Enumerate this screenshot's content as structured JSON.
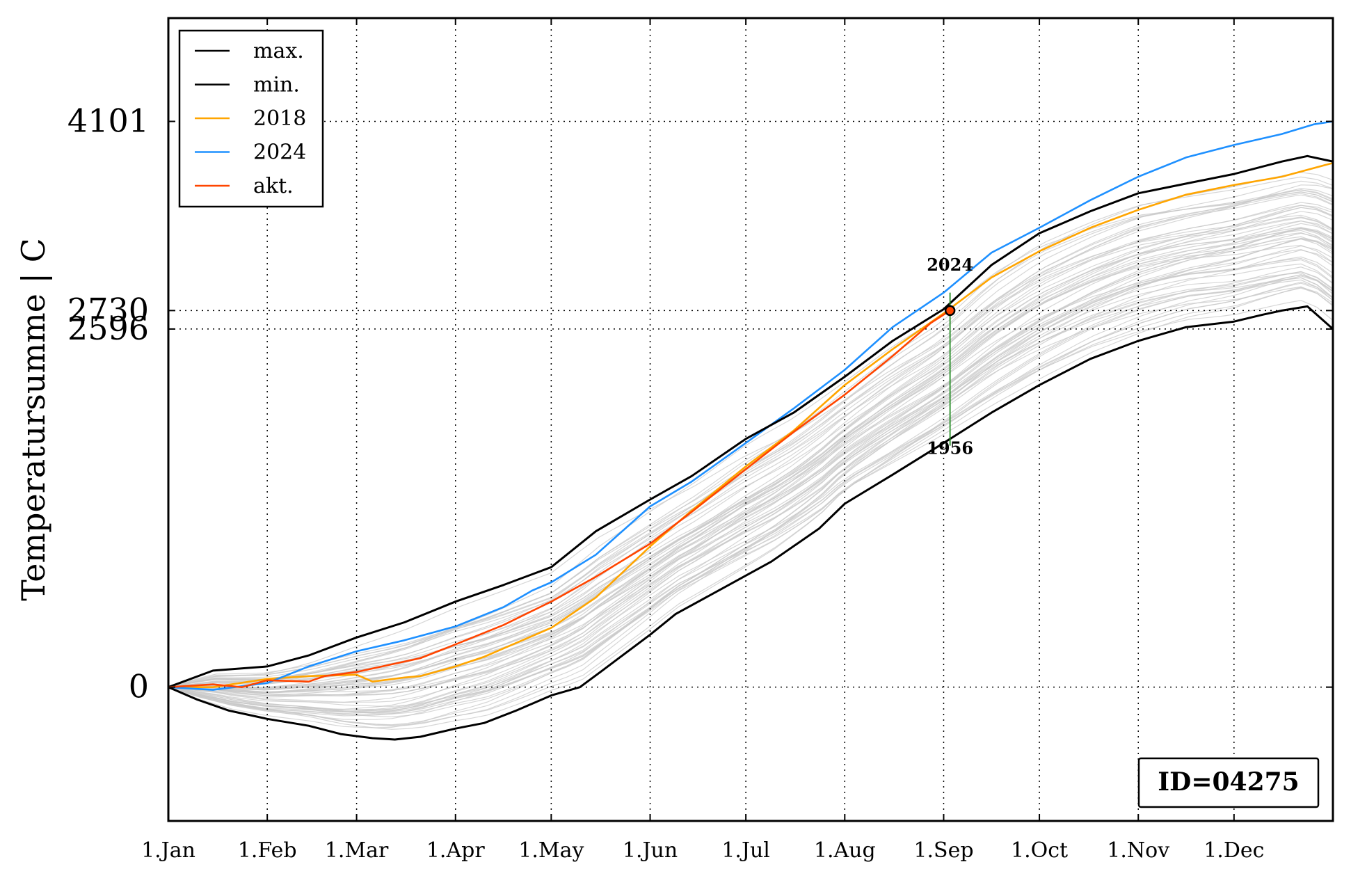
{
  "chart_data": {
    "type": "line",
    "title": "",
    "xlabel": "",
    "ylabel": "Temperatursumme | C",
    "x_unit": "day of year",
    "xlim": [
      1,
      366
    ],
    "ylim": [
      -970,
      4850
    ],
    "x_ticks": [
      {
        "label": "1.Jan",
        "day": 1
      },
      {
        "label": "1.Feb",
        "day": 32
      },
      {
        "label": "1.Mar",
        "day": 60
      },
      {
        "label": "1.Apr",
        "day": 91
      },
      {
        "label": "1.May",
        "day": 121
      },
      {
        "label": "1.Jun",
        "day": 152
      },
      {
        "label": "1.Jul",
        "day": 182
      },
      {
        "label": "1.Aug",
        "day": 213
      },
      {
        "label": "1.Sep",
        "day": 244
      },
      {
        "label": "1.Oct",
        "day": 274
      },
      {
        "label": "1.Nov",
        "day": 305
      },
      {
        "label": "1.Dec",
        "day": 335
      }
    ],
    "y_ticks": [
      {
        "label": "0",
        "value": 0
      },
      {
        "label": "2596",
        "value": 2596
      },
      {
        "label": "2730",
        "value": 2730
      },
      {
        "label": "4101",
        "value": 4101
      }
    ],
    "grid": true,
    "legend_position": "top-left",
    "legend": [
      {
        "label": "max.",
        "color": "#000000"
      },
      {
        "label": "min.",
        "color": "#000000"
      },
      {
        "label": "2018",
        "color": "#ffa500"
      },
      {
        "label": "2024",
        "color": "#1e90ff"
      },
      {
        "label": "akt.",
        "color": "#ff4500"
      }
    ],
    "series": [
      {
        "name": "max.",
        "role": "envelope",
        "color": "#000000",
        "points": [
          [
            1,
            0
          ],
          [
            15,
            120
          ],
          [
            32,
            150
          ],
          [
            45,
            230
          ],
          [
            60,
            360
          ],
          [
            75,
            470
          ],
          [
            91,
            620
          ],
          [
            106,
            740
          ],
          [
            121,
            870
          ],
          [
            135,
            1130
          ],
          [
            152,
            1360
          ],
          [
            165,
            1530
          ],
          [
            182,
            1800
          ],
          [
            197,
            1990
          ],
          [
            213,
            2250
          ],
          [
            228,
            2510
          ],
          [
            244,
            2740
          ],
          [
            259,
            3060
          ],
          [
            274,
            3290
          ],
          [
            290,
            3450
          ],
          [
            305,
            3580
          ],
          [
            320,
            3650
          ],
          [
            335,
            3720
          ],
          [
            350,
            3810
          ],
          [
            358,
            3850
          ],
          [
            366,
            3810
          ]
        ]
      },
      {
        "name": "min.",
        "role": "envelope",
        "color": "#000000",
        "points": [
          [
            1,
            0
          ],
          [
            10,
            -90
          ],
          [
            20,
            -170
          ],
          [
            32,
            -230
          ],
          [
            45,
            -280
          ],
          [
            55,
            -340
          ],
          [
            65,
            -370
          ],
          [
            72,
            -380
          ],
          [
            80,
            -360
          ],
          [
            91,
            -300
          ],
          [
            100,
            -260
          ],
          [
            110,
            -170
          ],
          [
            121,
            -60
          ],
          [
            130,
            0
          ],
          [
            137,
            120
          ],
          [
            152,
            380
          ],
          [
            160,
            530
          ],
          [
            175,
            720
          ],
          [
            190,
            910
          ],
          [
            205,
            1150
          ],
          [
            213,
            1330
          ],
          [
            228,
            1540
          ],
          [
            244,
            1770
          ],
          [
            259,
            1990
          ],
          [
            274,
            2190
          ],
          [
            290,
            2380
          ],
          [
            305,
            2510
          ],
          [
            320,
            2610
          ],
          [
            335,
            2650
          ],
          [
            344,
            2700
          ],
          [
            350,
            2730
          ],
          [
            358,
            2760
          ],
          [
            366,
            2596
          ]
        ]
      },
      {
        "name": "2018",
        "color": "#ffa500",
        "points": [
          [
            1,
            0
          ],
          [
            15,
            0
          ],
          [
            32,
            60
          ],
          [
            45,
            80
          ],
          [
            60,
            90
          ],
          [
            65,
            40
          ],
          [
            75,
            70
          ],
          [
            80,
            80
          ],
          [
            91,
            150
          ],
          [
            100,
            220
          ],
          [
            110,
            320
          ],
          [
            121,
            430
          ],
          [
            135,
            650
          ],
          [
            152,
            1020
          ],
          [
            165,
            1280
          ],
          [
            182,
            1600
          ],
          [
            197,
            1860
          ],
          [
            213,
            2190
          ],
          [
            228,
            2450
          ],
          [
            244,
            2710
          ],
          [
            259,
            2970
          ],
          [
            274,
            3160
          ],
          [
            290,
            3330
          ],
          [
            305,
            3460
          ],
          [
            320,
            3570
          ],
          [
            335,
            3640
          ],
          [
            350,
            3700
          ],
          [
            366,
            3800
          ]
        ]
      },
      {
        "name": "2024",
        "color": "#1e90ff",
        "points": [
          [
            1,
            0
          ],
          [
            15,
            -20
          ],
          [
            32,
            30
          ],
          [
            45,
            150
          ],
          [
            60,
            260
          ],
          [
            75,
            340
          ],
          [
            91,
            440
          ],
          [
            106,
            580
          ],
          [
            115,
            700
          ],
          [
            121,
            760
          ],
          [
            135,
            960
          ],
          [
            152,
            1310
          ],
          [
            165,
            1490
          ],
          [
            182,
            1770
          ],
          [
            197,
            2020
          ],
          [
            213,
            2300
          ],
          [
            228,
            2610
          ],
          [
            244,
            2860
          ],
          [
            259,
            3150
          ],
          [
            274,
            3330
          ],
          [
            290,
            3530
          ],
          [
            305,
            3700
          ],
          [
            320,
            3840
          ],
          [
            335,
            3930
          ],
          [
            350,
            4010
          ],
          [
            360,
            4080
          ],
          [
            366,
            4101
          ]
        ]
      },
      {
        "name": "akt.",
        "color": "#ff4500",
        "points": [
          [
            1,
            0
          ],
          [
            15,
            20
          ],
          [
            24,
            0
          ],
          [
            32,
            50
          ],
          [
            45,
            40
          ],
          [
            50,
            80
          ],
          [
            60,
            110
          ],
          [
            70,
            160
          ],
          [
            80,
            210
          ],
          [
            91,
            310
          ],
          [
            106,
            450
          ],
          [
            121,
            620
          ],
          [
            135,
            800
          ],
          [
            152,
            1040
          ],
          [
            165,
            1270
          ],
          [
            182,
            1580
          ],
          [
            197,
            1850
          ],
          [
            213,
            2120
          ],
          [
            228,
            2400
          ],
          [
            240,
            2640
          ],
          [
            246,
            2730
          ]
        ]
      }
    ],
    "current_point": {
      "x": 246,
      "y": 2730
    },
    "annotations": [
      {
        "text": "2024",
        "x": 246,
        "y": 3020
      },
      {
        "text": "1956",
        "x": 246,
        "y": 1690
      }
    ],
    "range_line": {
      "x": 246,
      "y_from": 1750,
      "y_to": 2860,
      "color": "#228b22"
    },
    "id_label": "ID=04275"
  }
}
